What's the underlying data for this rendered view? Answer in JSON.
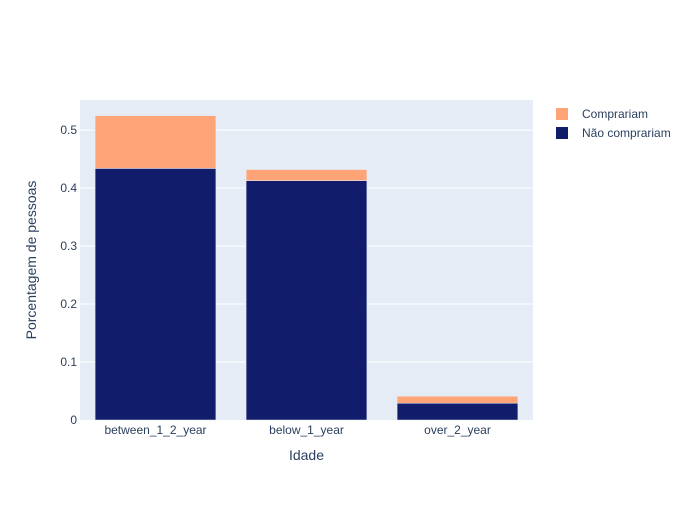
{
  "chart_data": {
    "type": "bar",
    "barmode": "stack",
    "categories": [
      "between_1_2_year",
      "below_1_year",
      "over_2_year"
    ],
    "series": [
      {
        "name": "Não comprariam",
        "values": [
          0.434,
          0.413,
          0.029
        ],
        "color": "#111c6b"
      },
      {
        "name": "Comprariam",
        "values": [
          0.091,
          0.019,
          0.012
        ],
        "color": "#ffa477"
      }
    ],
    "xlabel": "Idade",
    "ylabel": "Porcentagem de pessoas",
    "ylim": [
      0,
      0.552
    ],
    "yticks": [
      0,
      0.1,
      0.2,
      0.3,
      0.4,
      0.5
    ],
    "ytick_labels": [
      "0",
      "0.1",
      "0.2",
      "0.3",
      "0.4",
      "0.5"
    ],
    "grid": true,
    "legend_position": "top-right",
    "legend_order": [
      "Comprariam",
      "Não comprariam"
    ],
    "colors": {
      "plot_background": "#e5ecf6",
      "grid": "#ffffff",
      "text": "#2a3f5f"
    }
  }
}
